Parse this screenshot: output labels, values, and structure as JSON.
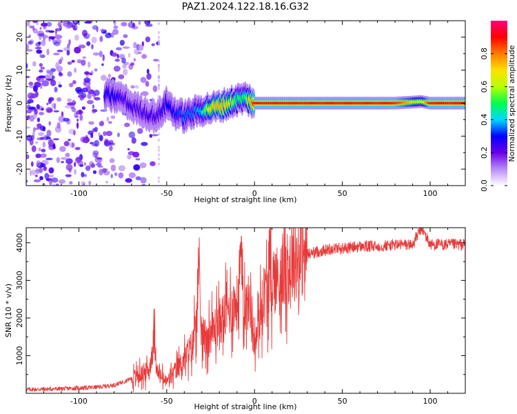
{
  "figure": {
    "title": "PAZ1.2024.122.18.16.G32"
  },
  "chart_data": [
    {
      "type": "heatmap",
      "title": "PAZ1.2024.122.18.16.G32",
      "xlabel": "Height of straight line (km)",
      "ylabel": "Frequency (Hz)",
      "xlim": [
        -130,
        120
      ],
      "ylim": [
        -25,
        25
      ],
      "xticks": [
        -100,
        -50,
        0,
        50,
        100
      ],
      "yticks": [
        -20,
        -10,
        0,
        10,
        20
      ],
      "grid": false,
      "colorbar": {
        "label": "Normalized spectral amplitude",
        "range": [
          0.0,
          1.0
        ],
        "ticks": [
          0.0,
          0.2,
          0.4,
          0.6,
          0.8
        ],
        "tick_labels": [
          "0.0",
          "0.2",
          "0.4",
          "0.6",
          "0.8"
        ],
        "colormap": [
          "#ffffff",
          "#b88cf5",
          "#6a00e8",
          "#0000ff",
          "#00d8ff",
          "#00ff4c",
          "#b8ff00",
          "#ffe000",
          "#ff7a00",
          "#ff0000",
          "#ff007a"
        ]
      },
      "ridge": {
        "x": [
          -85,
          -80,
          -75,
          -70,
          -65,
          -60,
          -55,
          -50,
          -45,
          -40,
          -35,
          -30,
          -25,
          -20,
          -15,
          -10,
          -5,
          0,
          10,
          20,
          40,
          60,
          80,
          95,
          100,
          120
        ],
        "frequency": [
          2.5,
          2,
          1.5,
          -1,
          -2,
          -3.5,
          -4,
          0,
          -3,
          -4,
          -3,
          -2,
          -1.5,
          -1,
          0,
          1,
          1.5,
          0,
          0,
          0,
          0,
          0,
          0,
          0.5,
          0,
          0
        ],
        "amplitude": [
          0.3,
          0.3,
          0.25,
          0.25,
          0.25,
          0.25,
          0.25,
          0.3,
          0.3,
          0.35,
          0.35,
          0.4,
          0.7,
          0.75,
          0.7,
          0.5,
          0.5,
          0.9,
          0.9,
          0.9,
          0.9,
          0.9,
          0.9,
          0.6,
          0.9,
          0.9
        ]
      },
      "noise_region_x": [
        -130,
        -55
      ],
      "noise_level": 0.15
    },
    {
      "type": "line",
      "xlabel": "Height of straight line (km)",
      "ylabel": "SNR (10 * v/v)",
      "xlim": [
        -130,
        120
      ],
      "ylim": [
        0,
        4400
      ],
      "xticks": [
        -100,
        -50,
        0,
        50,
        100
      ],
      "yticks": [
        1000,
        2000,
        3000,
        4000
      ],
      "grid": false,
      "color": "#e83a3a",
      "series": [
        {
          "x": [
            -130,
            -110,
            -90,
            -80,
            -75,
            -70,
            -65,
            -60,
            -57,
            -55,
            -50,
            -45,
            -40,
            -35,
            -32,
            -30,
            -25,
            -20,
            -15,
            -10,
            -8,
            -5,
            -2,
            0,
            5,
            10,
            15,
            20,
            25,
            30,
            35,
            40,
            45,
            50,
            60,
            70,
            80,
            90,
            95,
            100,
            110,
            120
          ],
          "y": [
            100,
            120,
            160,
            220,
            300,
            400,
            500,
            600,
            1500,
            500,
            300,
            600,
            900,
            1300,
            2950,
            1500,
            1600,
            1900,
            2200,
            2400,
            3450,
            2300,
            2500,
            1200,
            2600,
            3000,
            3100,
            3400,
            3600,
            3700,
            3750,
            3800,
            3850,
            3850,
            3900,
            3900,
            3950,
            3950,
            4400,
            3950,
            3950,
            3950
          ]
        }
      ]
    }
  ]
}
